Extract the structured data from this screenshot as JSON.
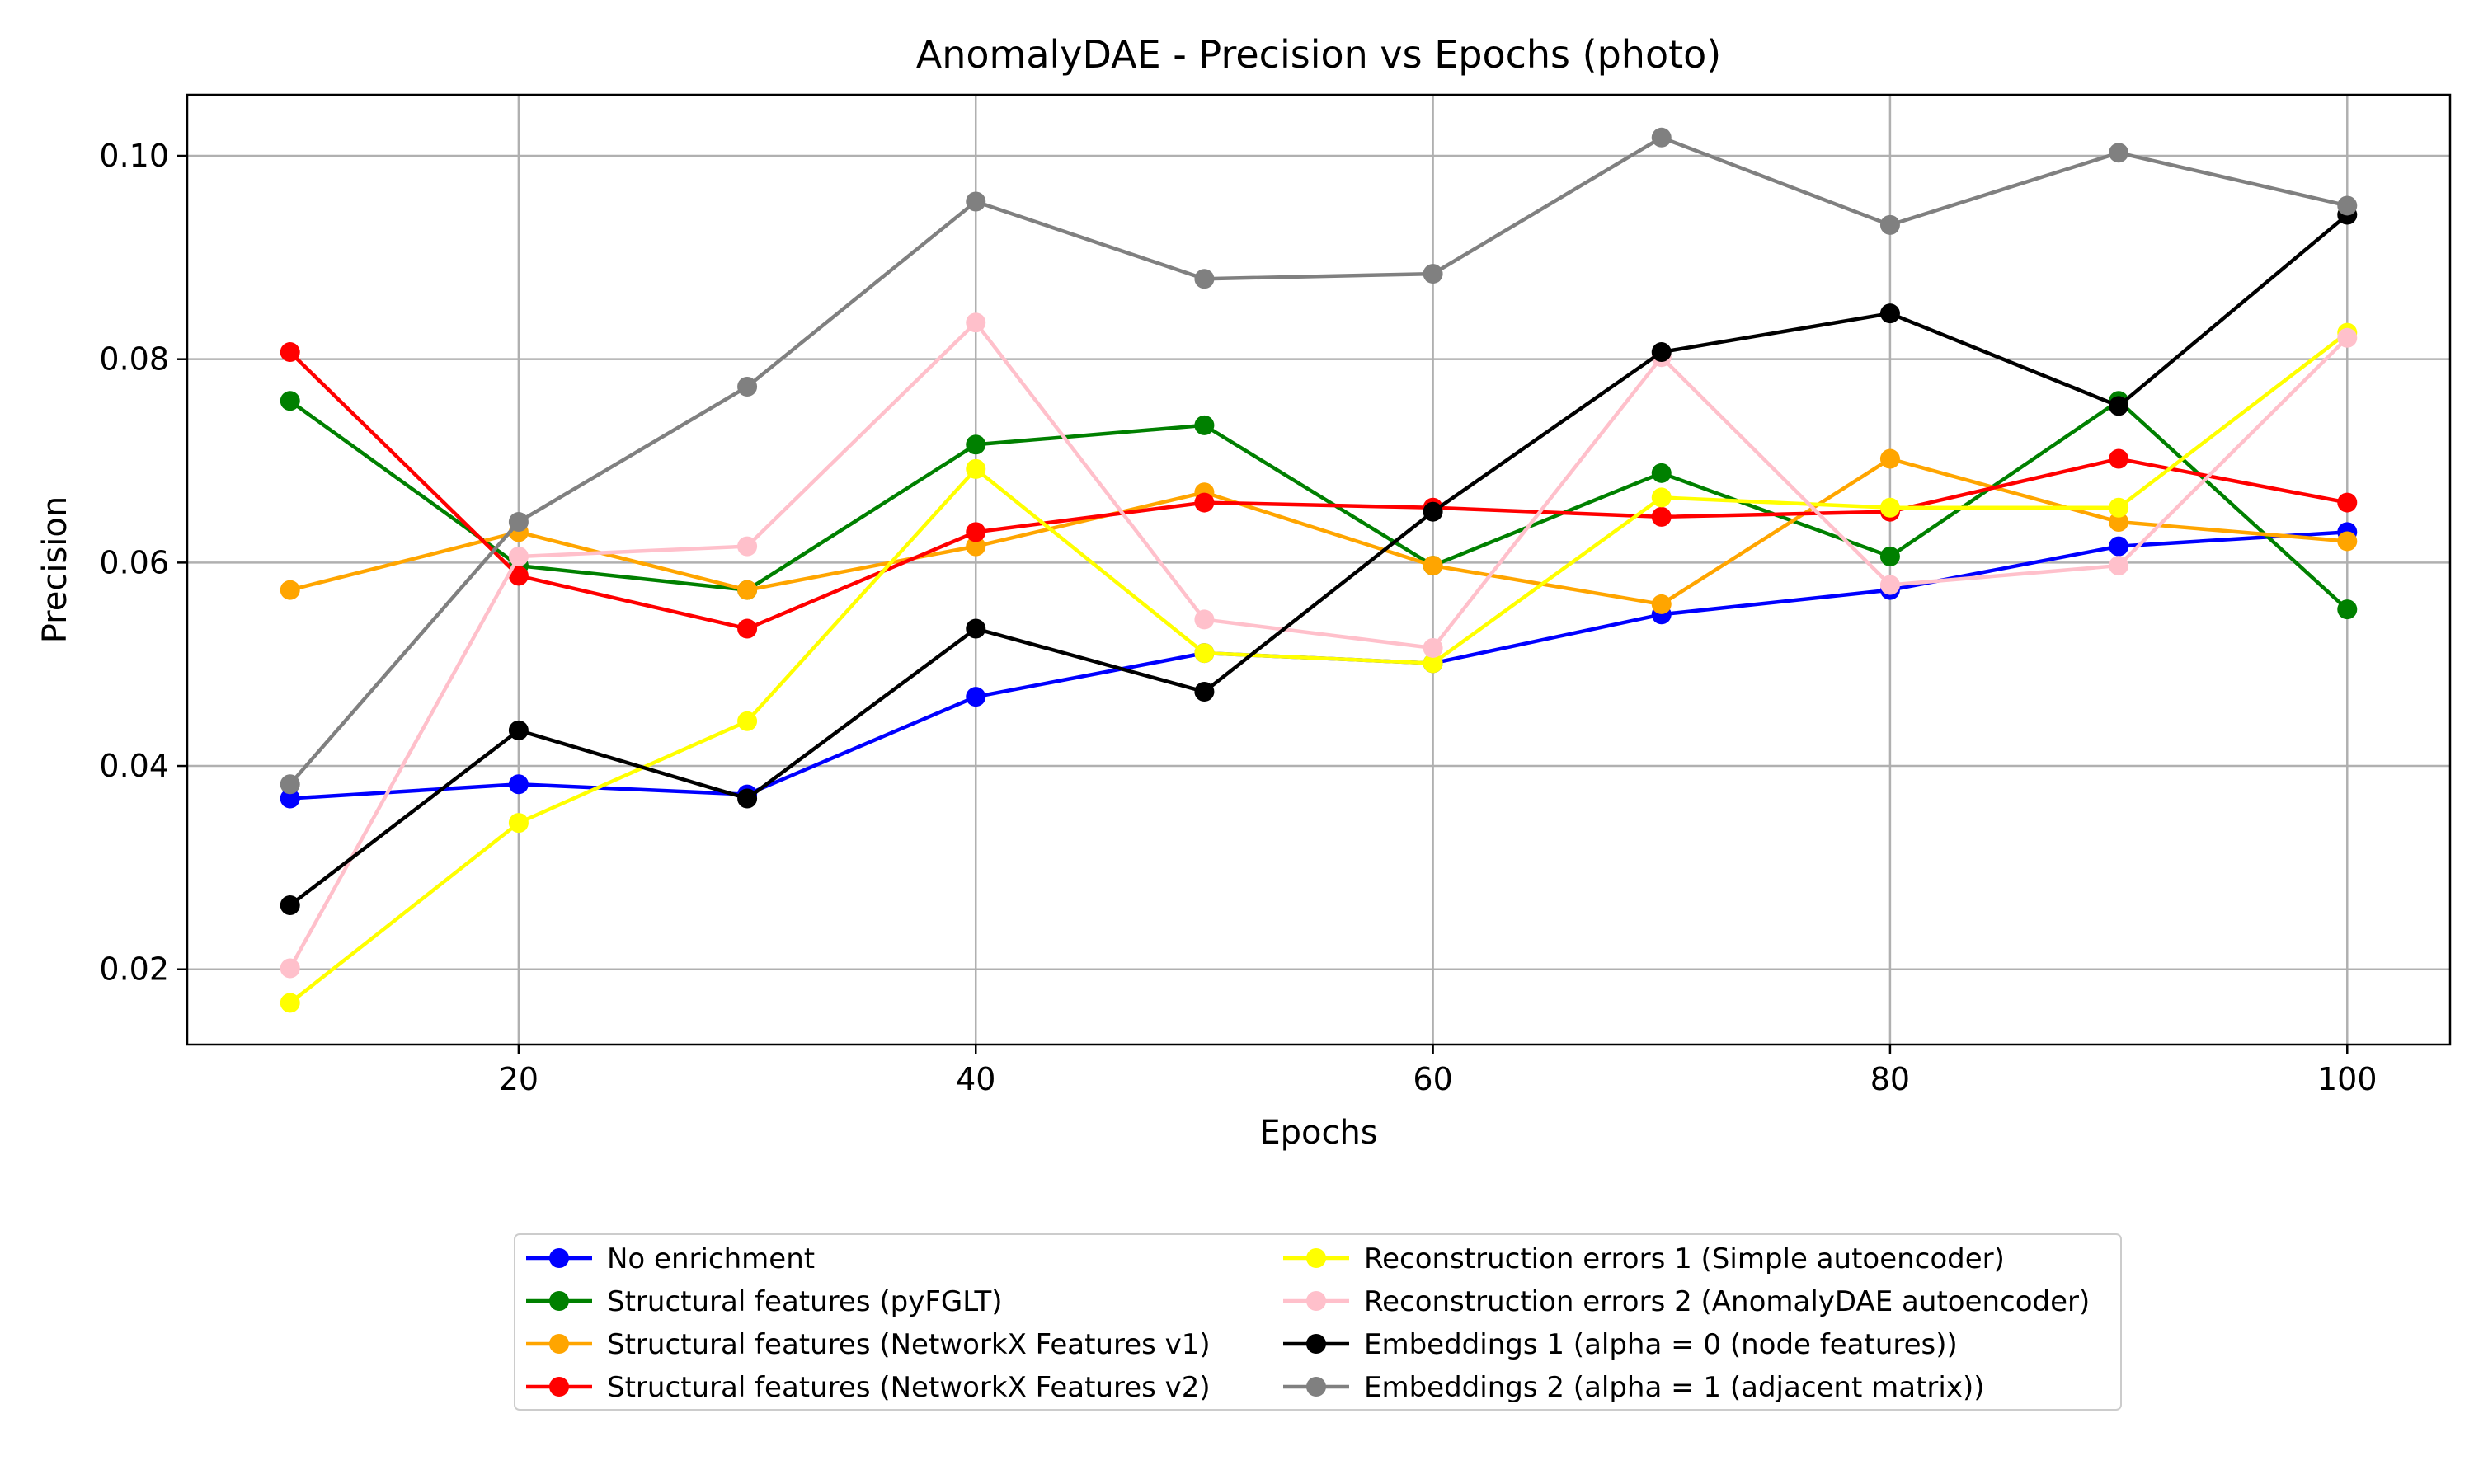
{
  "chart_data": {
    "type": "line",
    "title": "AnomalyDAE - Precision vs Epochs (photo)",
    "xlabel": "Epochs",
    "ylabel": "Precision",
    "xlim": [
      5.5,
      104.5
    ],
    "ylim": [
      0.0126,
      0.106
    ],
    "x": [
      10,
      20,
      30,
      40,
      50,
      60,
      70,
      80,
      90,
      100
    ],
    "x_ticks": [
      20,
      40,
      60,
      80,
      100
    ],
    "x_tick_labels": [
      "20",
      "40",
      "60",
      "80",
      "100"
    ],
    "y_ticks": [
      0.02,
      0.04,
      0.06,
      0.08,
      0.1
    ],
    "y_tick_labels": [
      "0.02",
      "0.04",
      "0.06",
      "0.08",
      "0.10"
    ],
    "grid": true,
    "legend_position": "bottom-center",
    "series": [
      {
        "name": "No enrichment",
        "color": "#0000ff",
        "values": [
          0.0368,
          0.0382,
          0.0372,
          0.0468,
          0.0511,
          0.0501,
          0.0549,
          0.0573,
          0.0616,
          0.063
        ]
      },
      {
        "name": "Structural features (pyFGLT)",
        "color": "#008000",
        "values": [
          0.0759,
          0.0597,
          0.0573,
          0.0716,
          0.0735,
          0.0597,
          0.0688,
          0.0606,
          0.0759,
          0.0554
        ]
      },
      {
        "name": "Structural features (NetworkX Features v1)",
        "color": "#ffa500",
        "values": [
          0.0573,
          0.063,
          0.0573,
          0.0616,
          0.0669,
          0.0597,
          0.0559,
          0.0702,
          0.064,
          0.0621
        ]
      },
      {
        "name": "Structural features (NetworkX Features v2)",
        "color": "#ff0000",
        "values": [
          0.0807,
          0.0587,
          0.0535,
          0.063,
          0.0659,
          0.0654,
          0.0645,
          0.065,
          0.0702,
          0.0659
        ]
      },
      {
        "name": "Reconstruction errors 1 (Simple autoencoder)",
        "color": "#ffff00",
        "values": [
          0.0167,
          0.0344,
          0.0444,
          0.0692,
          0.0511,
          0.0501,
          0.0664,
          0.0654,
          0.0654,
          0.0826
        ]
      },
      {
        "name": "Reconstruction errors 2 (AnomalyDAE autoencoder)",
        "color": "#ffc0cb",
        "values": [
          0.0201,
          0.0606,
          0.0616,
          0.0836,
          0.0544,
          0.0516,
          0.0802,
          0.0578,
          0.0597,
          0.0821
        ]
      },
      {
        "name": "Embeddings 1 (alpha = 0 (node features))",
        "color": "#000000",
        "values": [
          0.0263,
          0.0435,
          0.0368,
          0.0535,
          0.0473,
          0.065,
          0.0807,
          0.0845,
          0.0754,
          0.0942
        ]
      },
      {
        "name": "Embeddings 2 (alpha = 1 (adjacent matrix))",
        "color": "#808080",
        "values": [
          0.0382,
          0.064,
          0.0773,
          0.0955,
          0.0879,
          0.0884,
          0.1018,
          0.0932,
          0.1003,
          0.0951
        ]
      }
    ]
  }
}
